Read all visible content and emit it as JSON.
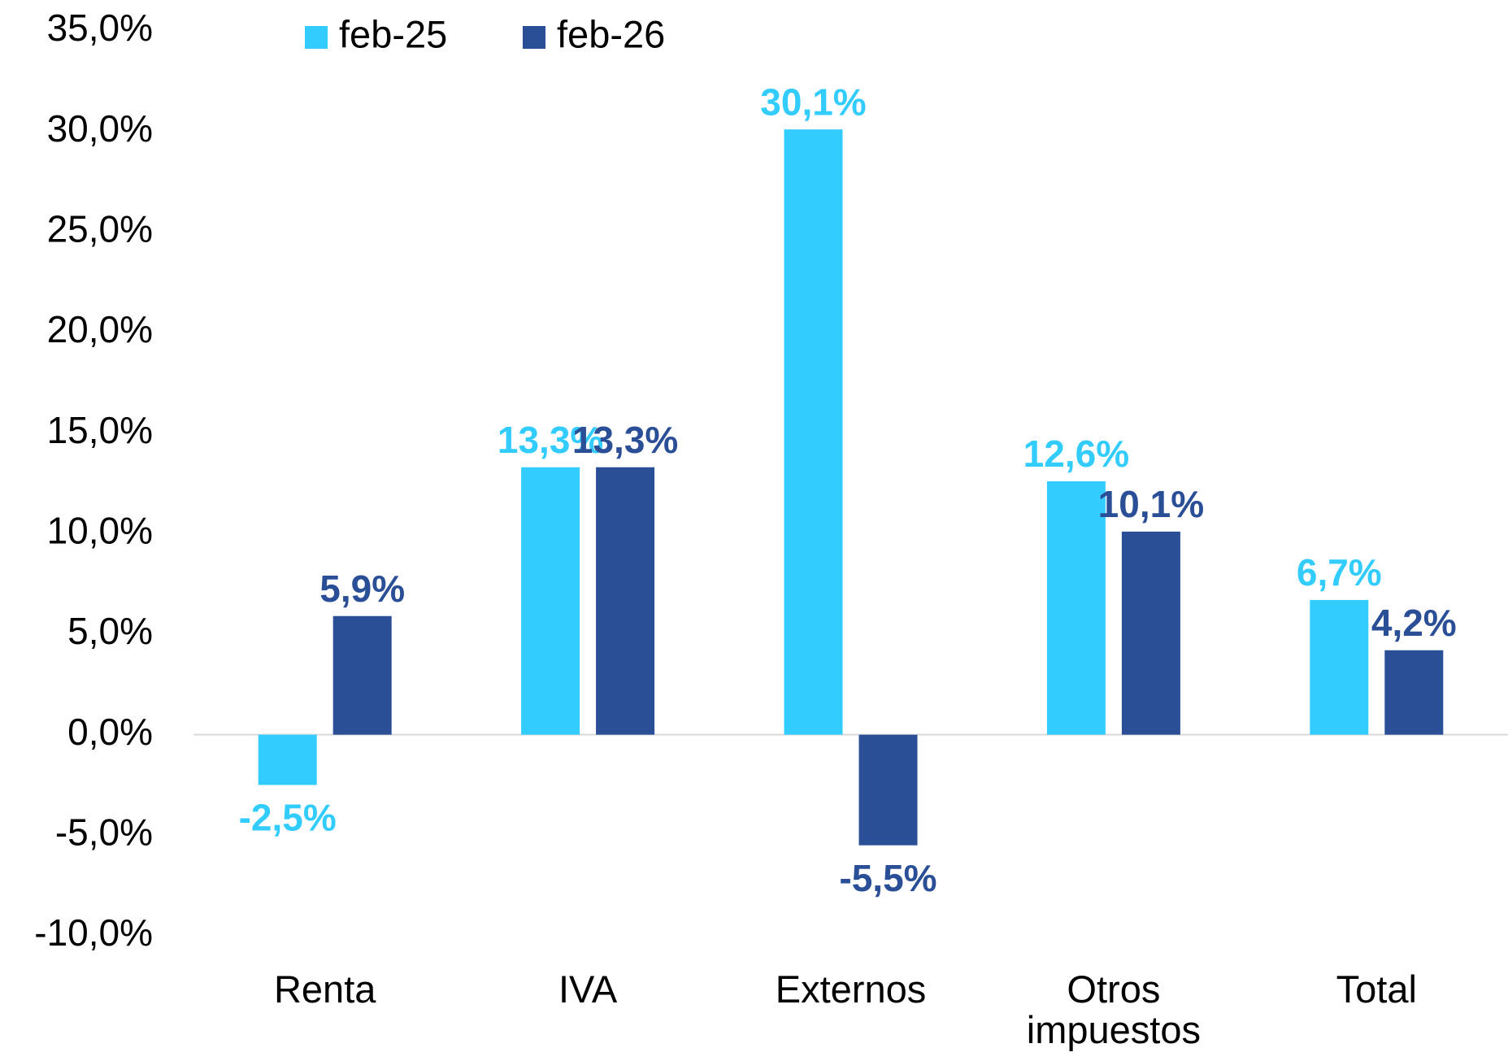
{
  "chart_data": {
    "type": "bar",
    "categories": [
      "Renta",
      "IVA",
      "Externos",
      "Otros impuestos",
      "Total"
    ],
    "series": [
      {
        "name": "feb-25",
        "color": "#33ccff",
        "values": [
          -2.5,
          13.3,
          30.1,
          12.6,
          6.7
        ],
        "value_labels": [
          "-2,5%",
          "13,3%",
          "30,1%",
          "12,6%",
          "6,7%"
        ]
      },
      {
        "name": "feb-26",
        "color": "#2a4f96",
        "values": [
          5.9,
          13.3,
          -5.5,
          10.1,
          4.2
        ],
        "value_labels": [
          "5,9%",
          "13,3%",
          "-5,5%",
          "10,1%",
          "4,2%"
        ]
      }
    ],
    "ylim": [
      -10,
      35
    ],
    "yticks": [
      {
        "value": -10,
        "label": "-10,0%"
      },
      {
        "value": -5,
        "label": "-5,0%"
      },
      {
        "value": 0,
        "label": "0,0%"
      },
      {
        "value": 5,
        "label": "5,0%"
      },
      {
        "value": 10,
        "label": "10,0%"
      },
      {
        "value": 15,
        "label": "15,0%"
      },
      {
        "value": 20,
        "label": "20,0%"
      },
      {
        "value": 25,
        "label": "25,0%"
      },
      {
        "value": 30,
        "label": "30,0%"
      },
      {
        "value": 35,
        "label": "35,0%"
      }
    ],
    "grid": false,
    "legend": "top"
  }
}
